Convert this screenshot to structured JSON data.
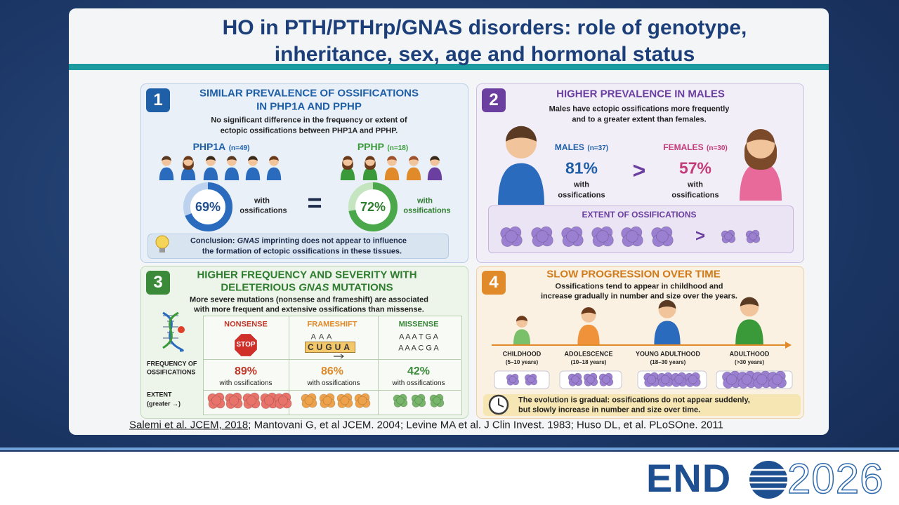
{
  "title": {
    "line1": "HO in PTH/PTHrp/GNAS disorders: role of genotype,",
    "line2": "inheritance, sex, age and hormonal status"
  },
  "panel1": {
    "number": "1",
    "heading": [
      "SIMILAR PREVALENCE OF OSSIFICATIONS",
      "IN PHP1A AND PPHP"
    ],
    "text": [
      "No significant difference in the frequency or extent of",
      "ectopic ossifications between PHP1A and PPHP."
    ],
    "left": {
      "group": "PHP1A",
      "n": "(n=49)",
      "percent": "69%",
      "caption": [
        "with",
        "ossifications"
      ]
    },
    "equals": "=",
    "right": {
      "group": "PPHP",
      "n": "(n=18)",
      "percent": "72%",
      "caption": [
        "with",
        "ossifications"
      ]
    },
    "conclusion": {
      "lead": "Conclusion: ",
      "gene": "GNAS",
      "rest": " imprinting does not appear to influence",
      "line2": "the formation of ectopic ossifications in these tissues."
    }
  },
  "panel2": {
    "number": "2",
    "heading": "HIGHER PREVALENCE IN MALES",
    "text": [
      "Males have ectopic ossifications more frequently",
      "and to a greater extent than females."
    ],
    "males": {
      "group": "MALES",
      "n": "(n=37)",
      "percent": "81%",
      "caption": [
        "with",
        "ossifications"
      ]
    },
    "greater": ">",
    "females": {
      "group": "FEMALES",
      "n": "(n=30)",
      "percent": "57%",
      "caption": [
        "with",
        "ossifications"
      ]
    },
    "extent": {
      "title": "EXTENT OF OSSIFICATIONS",
      "greater": ">"
    }
  },
  "panel3": {
    "number": "3",
    "heading": {
      "line1": "HIGHER FREQUENCY AND SEVERITY WITH",
      "pre": "DELETERIOUS ",
      "gene": "GNAS",
      "post": " MUTATIONS"
    },
    "text": [
      "More severe mutations (nonsense and frameshift) are associated",
      "with more frequent and extensive ossifications than missense."
    ],
    "row_labels": {
      "frequency": [
        "FREQUENCY OF",
        "OSSIFICATIONS"
      ],
      "extent": [
        "EXTENT",
        "(greater →)"
      ]
    },
    "columns": [
      {
        "name": "NONSENSE",
        "sign": "STOP",
        "percent": "89%",
        "caption": "with ossifications"
      },
      {
        "name": "FRAMESHIFT",
        "sequence": [
          "A A A",
          "CUGUA"
        ],
        "percent": "86%",
        "caption": "with ossifications"
      },
      {
        "name": "MISSENSE",
        "sequence": [
          "A A A T G A",
          "A A A C G A"
        ],
        "percent": "42%",
        "caption": "with ossifications"
      }
    ]
  },
  "panel4": {
    "number": "4",
    "heading": "SLOW PROGRESSION OVER TIME",
    "text": [
      "Ossifications tend to appear in childhood and",
      "increase gradually in number and size over the years."
    ],
    "stages": [
      {
        "name": "CHILDHOOD",
        "age": "(5–10 years)"
      },
      {
        "name": "ADOLESCENCE",
        "age": "(10–18 years)"
      },
      {
        "name": "YOUNG ADULTHOOD",
        "age": "(18–30 years)"
      },
      {
        "name": "ADULTHOOD",
        "age": "(>30 years)"
      }
    ],
    "footer": [
      "The evolution is gradual: ossifications do not appear suddenly,",
      "but slowly increase in number and size over time."
    ]
  },
  "citation": {
    "linked": "Salemi et al. JCEM, 2018",
    "rest": "; Mantovani G, et al JCEM. 2004; Levine MA et al. J Clin Invest. 1983; Huso DL, et al. PLoSOne. 2011"
  },
  "logo": {
    "brand": "END",
    "year": "2026"
  }
}
